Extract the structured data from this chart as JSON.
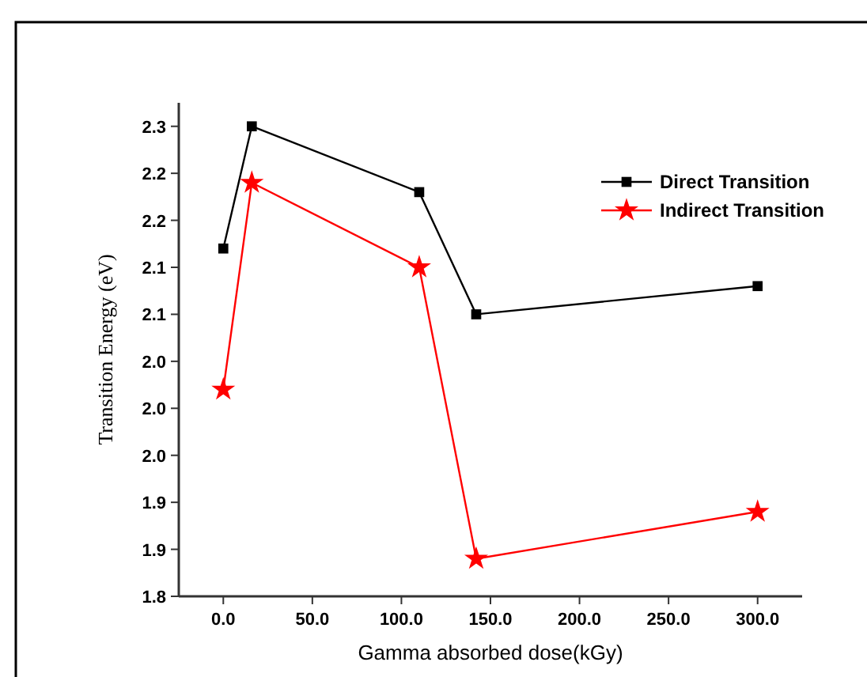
{
  "chart_data": {
    "type": "line",
    "xlabel": "Gamma absorbed dose(kGy)",
    "ylabel": "Transition Energy (eV)",
    "x": [
      0,
      16,
      110,
      142,
      300
    ],
    "series": [
      {
        "name": "Direct Transition",
        "color": "#000000",
        "marker": "square",
        "values": [
          2.17,
          2.3,
          2.23,
          2.1,
          2.13
        ]
      },
      {
        "name": "Indirect Transition",
        "color": "#ff0000",
        "marker": "star",
        "values": [
          2.02,
          2.24,
          2.15,
          1.84,
          1.89
        ]
      }
    ],
    "xlim": [
      -25,
      325
    ],
    "xticks": [
      {
        "value": 0,
        "label": "0.0"
      },
      {
        "value": 50,
        "label": "50.0"
      },
      {
        "value": 100,
        "label": "100.0"
      },
      {
        "value": 150,
        "label": "150.0"
      },
      {
        "value": 200,
        "label": "200.0"
      },
      {
        "value": 250,
        "label": "250.0"
      },
      {
        "value": 300,
        "label": "300.0"
      }
    ],
    "ylim": [
      1.8,
      2.325
    ],
    "yticks": [
      {
        "value": 1.8,
        "label": "1.8"
      },
      {
        "value": 1.85,
        "label": "1.9"
      },
      {
        "value": 1.9,
        "label": "1.9"
      },
      {
        "value": 1.95,
        "label": "2.0"
      },
      {
        "value": 2.0,
        "label": "2.0"
      },
      {
        "value": 2.05,
        "label": "2.0"
      },
      {
        "value": 2.1,
        "label": "2.1"
      },
      {
        "value": 2.15,
        "label": "2.1"
      },
      {
        "value": 2.2,
        "label": "2.2"
      },
      {
        "value": 2.25,
        "label": "2.2"
      },
      {
        "value": 2.3,
        "label": "2.3"
      }
    ],
    "grid": false,
    "legend": "top right",
    "line_style": "solid"
  }
}
